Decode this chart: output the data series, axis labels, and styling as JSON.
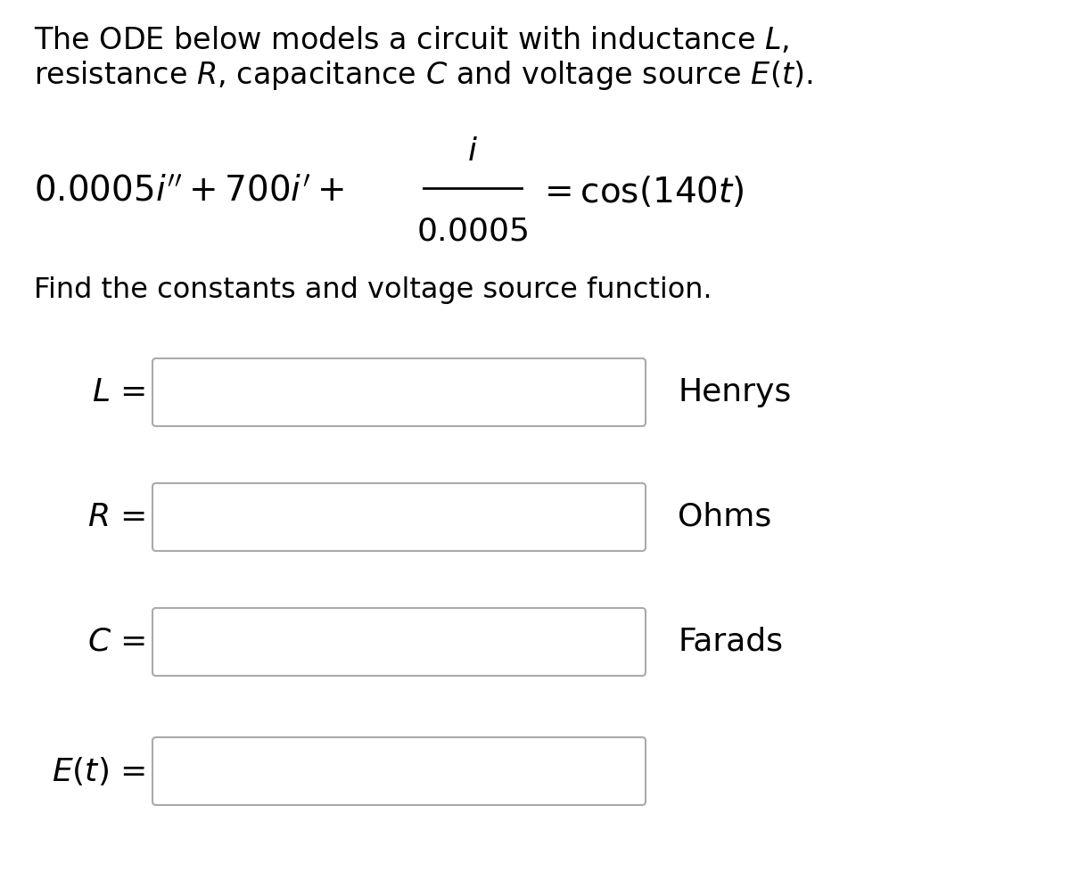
{
  "background_color": "#ffffff",
  "text_color": "#000000",
  "box_edge_color": "#aaaaaa",
  "box_face_color": "#ffffff",
  "title_line1": "The ODE below models a circuit with inductance $L$,",
  "title_line2": "resistance $R$, capacitance $C$ and voltage source $E(t)$.",
  "subtitle": "Find the constants and voltage source function.",
  "eq_left": "$0.0005i''+700i'+$",
  "eq_num": "$i$",
  "eq_den": "$0.0005$",
  "eq_right": "$= \\cos(140t)$",
  "labels": [
    "$L$ =",
    "$R$ =",
    "$C$ =",
    "$E(t)$ ="
  ],
  "units": [
    "Henrys",
    "Ohms",
    "Farads",
    ""
  ],
  "font_size_title": 24,
  "font_size_eq": 28,
  "font_size_label": 26,
  "font_size_subtitle": 23,
  "fig_width": 12.0,
  "fig_height": 9.77,
  "dpi": 100
}
